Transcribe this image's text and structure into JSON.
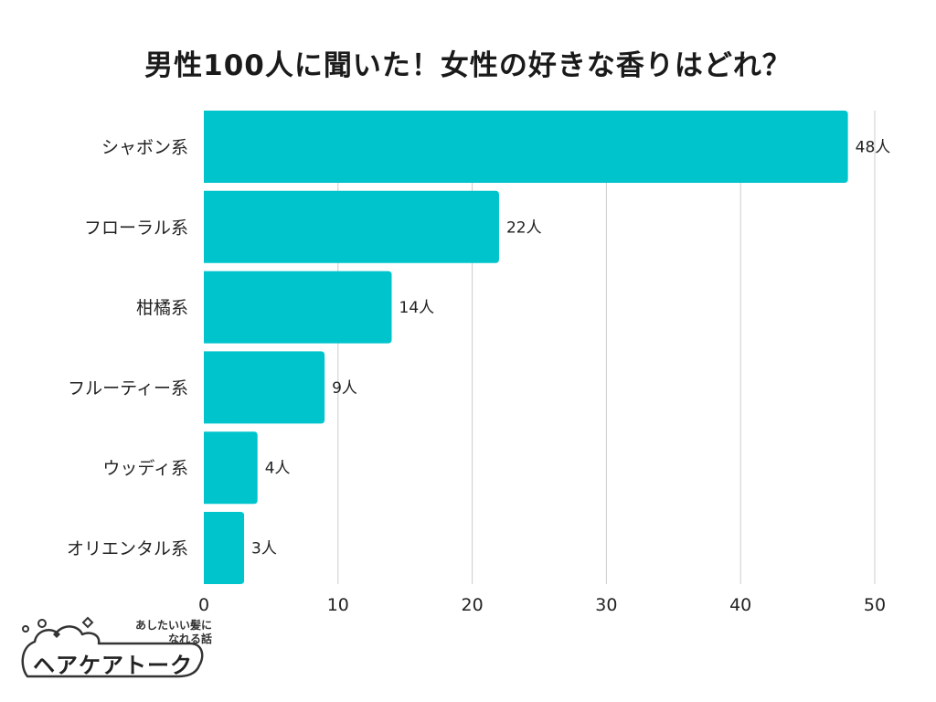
{
  "chart_data": {
    "type": "bar",
    "orientation": "horizontal",
    "title": "男性100人に聞いた！女性の好きな香りはどれ？",
    "categories": [
      "シャボン系",
      "フローラル系",
      "柑橘系",
      "フルーティー系",
      "ウッディ系",
      "オリエンタル系"
    ],
    "values": [
      48,
      22,
      14,
      9,
      4,
      3
    ],
    "value_labels": [
      "48人",
      "22人",
      "14人",
      "9人",
      "4人",
      "3人"
    ],
    "xlim": [
      0,
      50
    ],
    "xticks": [
      0,
      10,
      20,
      30,
      40,
      50
    ],
    "xtick_labels": [
      "0",
      "10",
      "20",
      "30",
      "40",
      "50"
    ],
    "xlabel": "",
    "ylabel": "",
    "grid": true,
    "bar_color": "#00c4cc"
  },
  "logo": {
    "tagline_line1": "あしたいい髪に",
    "tagline_line2": "なれる話",
    "name": "ヘアケアトーク"
  }
}
